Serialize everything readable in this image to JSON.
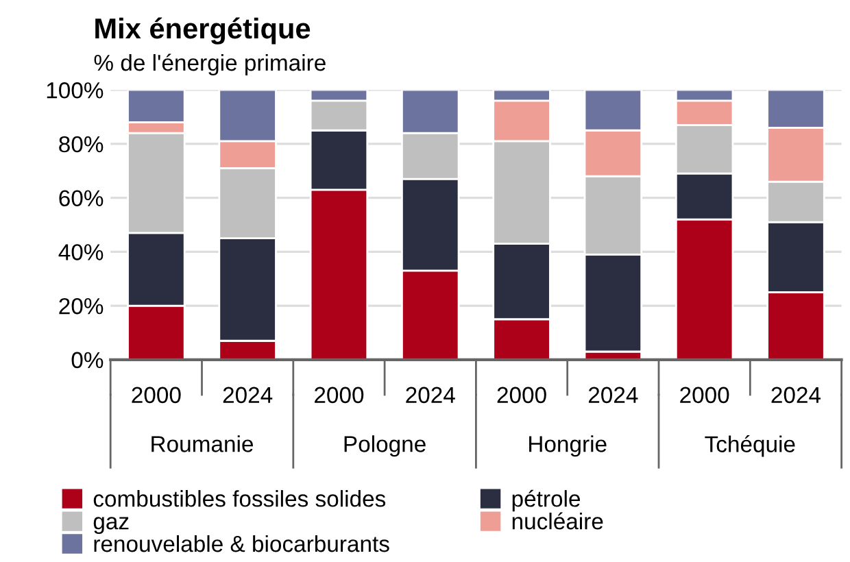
{
  "chart_data": {
    "type": "bar",
    "stacked": true,
    "title": "Mix énergétique",
    "subtitle": "% de l'énergie primaire",
    "categories": [
      "2000",
      "2024",
      "2000",
      "2024",
      "2000",
      "2024",
      "2000",
      "2024"
    ],
    "annotations": [
      "Roumanie",
      "Pologne",
      "Hongrie",
      "Tchéquie"
    ],
    "series": [
      {
        "name": "combustibles fossiles solides",
        "color": "#ad0019",
        "values": [
          20,
          7,
          63,
          33,
          15,
          3,
          52,
          25
        ]
      },
      {
        "name": "pétrole",
        "color": "#2a2e40",
        "values": [
          27,
          38,
          22,
          34,
          28,
          36,
          17,
          26
        ]
      },
      {
        "name": "gaz",
        "color": "#bfbfbf",
        "values": [
          37,
          26,
          11,
          17,
          38,
          29,
          18,
          15
        ]
      },
      {
        "name": "nucléaire",
        "color": "#ee9e94",
        "values": [
          4,
          10,
          null,
          null,
          15,
          17,
          9,
          20
        ]
      },
      {
        "name": "renouvelable & biocarburants",
        "color": "#6b739e",
        "values": [
          12,
          19,
          4,
          16,
          4,
          15,
          4,
          14
        ]
      }
    ],
    "ylim": [
      0,
      100
    ],
    "yticks": [
      {
        "value": 0,
        "label": "0%"
      },
      {
        "value": 20,
        "label": "20%"
      },
      {
        "value": 40,
        "label": "40%"
      },
      {
        "value": 60,
        "label": "60%"
      },
      {
        "value": 80,
        "label": "80%"
      },
      {
        "value": 100,
        "label": "100%"
      }
    ],
    "grid": "y",
    "legend": "bottom"
  }
}
